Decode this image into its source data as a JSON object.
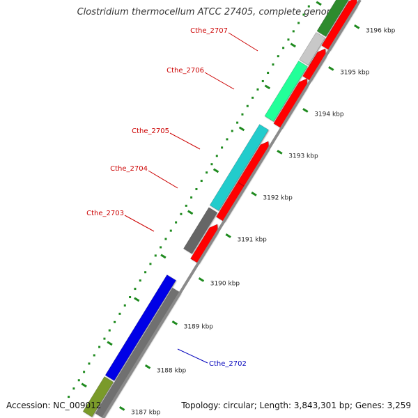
{
  "title": "Clostridium thermocellum ATCC 27405, complete genome",
  "accession": "Accession: NC_009012",
  "topology": "Topology: circular; Length: 3,843,301 bp; Genes: 3,259",
  "colors": {
    "backbone": "#8a8a8a",
    "tick": "#1e8a1e",
    "gene_label_red": "#cc0000",
    "gene_label_blue": "#0000bb"
  },
  "ticks": [
    {
      "label": "3187 kbp"
    },
    {
      "label": "3188 kbp"
    },
    {
      "label": "3189 kbp"
    },
    {
      "label": "3190 kbp"
    },
    {
      "label": "3191 kbp"
    },
    {
      "label": "3192 kbp"
    },
    {
      "label": "3193 kbp"
    },
    {
      "label": "3194 kbp"
    },
    {
      "label": "3195 kbp"
    },
    {
      "label": "3196 kbp"
    }
  ],
  "gene_labels": [
    {
      "name": "Cthe_2707",
      "color": "#cc0000"
    },
    {
      "name": "Cthe_2706",
      "color": "#cc0000"
    },
    {
      "name": "Cthe_2705",
      "color": "#cc0000"
    },
    {
      "name": "Cthe_2704",
      "color": "#cc0000"
    },
    {
      "name": "Cthe_2703",
      "color": "#cc0000"
    },
    {
      "name": "Cthe_2702",
      "color": "#0000bb"
    }
  ]
}
